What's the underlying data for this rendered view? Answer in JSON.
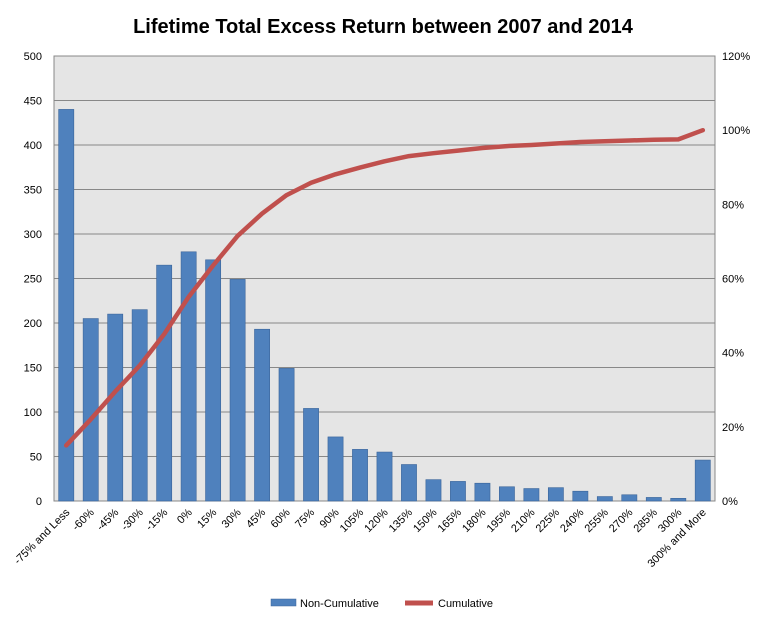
{
  "chart_data": {
    "type": "bar",
    "title": "Lifetime Total Excess Return between 2007 and 2014",
    "categories": [
      "-75% and Less",
      "-60%",
      "-45%",
      "-30%",
      "-15%",
      "0%",
      "15%",
      "30%",
      "45%",
      "60%",
      "75%",
      "90%",
      "105%",
      "120%",
      "135%",
      "150%",
      "165%",
      "180%",
      "195%",
      "210%",
      "225%",
      "240%",
      "255%",
      "270%",
      "285%",
      "300%",
      "300% and More"
    ],
    "series": [
      {
        "name": "Non-Cumulative",
        "type": "bar",
        "axis": "left",
        "color": "#4F81BD",
        "values": [
          440,
          205,
          210,
          215,
          265,
          280,
          271,
          249,
          193,
          149,
          104,
          72,
          58,
          55,
          41,
          24,
          22,
          20,
          16,
          14,
          15,
          11,
          5,
          7,
          4,
          3,
          46
        ]
      },
      {
        "name": "Cumulative",
        "type": "line",
        "axis": "right",
        "color": "#C0504D",
        "values": [
          15,
          22,
          29.5,
          36.5,
          45,
          55,
          63.5,
          71.5,
          77.5,
          82.5,
          85.8,
          88.1,
          89.9,
          91.6,
          93.0,
          93.8,
          94.5,
          95.2,
          95.7,
          96.0,
          96.4,
          96.8,
          97.0,
          97.2,
          97.4,
          97.5,
          100
        ]
      }
    ],
    "y_left": {
      "min": 0,
      "max": 500,
      "step": 50,
      "ticks": [
        "0",
        "50",
        "100",
        "150",
        "200",
        "250",
        "300",
        "350",
        "400",
        "450",
        "500"
      ]
    },
    "y_right": {
      "min": 0,
      "max": 120,
      "step": 20,
      "ticks": [
        "0%",
        "20%",
        "40%",
        "60%",
        "80%",
        "100%",
        "120%"
      ]
    },
    "grid": true,
    "legend": "bottom"
  }
}
